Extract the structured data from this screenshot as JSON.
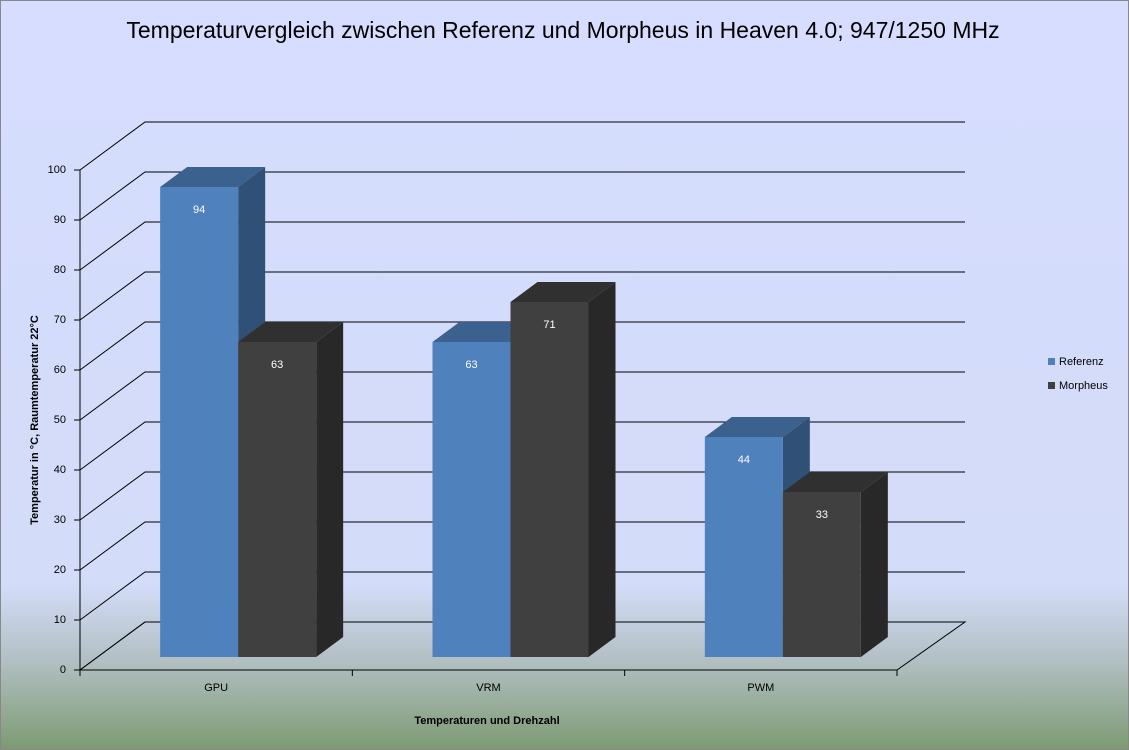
{
  "chart_data": {
    "type": "bar3d",
    "title": "Temperaturvergleich zwischen Referenz und Morpheus in Heaven 4.0; 947/1250 MHz",
    "x_label": "Temperaturen und Drehzahl",
    "y_label": "Temperatur in °C, Raumtemperatur 22°C",
    "categories": [
      "GPU",
      "VRM",
      "PWM"
    ],
    "series": [
      {
        "name": "Referenz",
        "color": "#4f81bd",
        "values": [
          94,
          63,
          44
        ]
      },
      {
        "name": "Morpheus",
        "color": "#404040",
        "values": [
          63,
          71,
          33
        ]
      }
    ],
    "ylim": [
      0,
      100
    ],
    "yticks": [
      0,
      10,
      20,
      30,
      40,
      50,
      60,
      70,
      80,
      90,
      100
    ],
    "grid": true,
    "legend": "right"
  }
}
